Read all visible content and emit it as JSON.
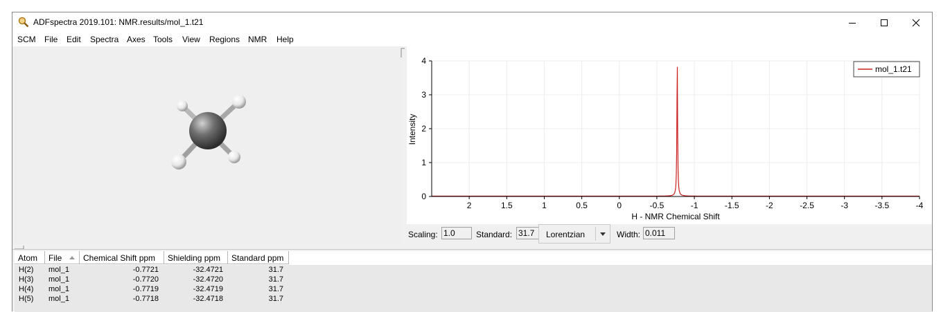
{
  "window": {
    "title": "ADFspectra 2019.101: NMR.results/mol_1.t21",
    "controls": [
      "minimize-icon",
      "maximize-icon",
      "close-icon"
    ]
  },
  "menu": [
    "SCM",
    "File",
    "Edit",
    "Spectra",
    "Axes",
    "Tools",
    "View",
    "Regions",
    "NMR",
    "Help"
  ],
  "molecule": {
    "atoms": [
      "C",
      "H",
      "H",
      "H",
      "H"
    ],
    "colors": {
      "carbon": "#6f6f6f",
      "hydrogen": "#f2f2f2"
    }
  },
  "chart_data": {
    "type": "line",
    "xlabel": "H - NMR Chemical Shift",
    "ylabel": "Intensity",
    "xlim": [
      2.5,
      -4.0
    ],
    "ylim": [
      0,
      4
    ],
    "x_ticks": [
      2,
      1.5,
      1,
      0.5,
      0,
      -0.5,
      -1,
      -1.5,
      -2,
      -2.5,
      -3,
      -3.5,
      -4
    ],
    "x_tick_labels": [
      "2",
      "1.5",
      "1",
      "0.5",
      "0",
      "-0.5",
      "-1",
      "-1.5",
      "-2",
      "-2.5",
      "-3",
      "-3.5",
      "-4"
    ],
    "y_ticks": [
      0,
      1,
      2,
      3,
      4
    ],
    "y_tick_labels": [
      "0",
      "1",
      "2",
      "3",
      "4"
    ],
    "grid": true,
    "legend_position": "top-right",
    "series": [
      {
        "name": "mol_1.t21",
        "color": "#cc1f1f",
        "peak_center": -0.772,
        "peak_height": 4.0,
        "lineshape": "Lorentzian"
      }
    ]
  },
  "controls": {
    "scaling_label": "Scaling:",
    "scaling_value": "1.0",
    "standard_label": "Standard:",
    "standard_value": "31.7",
    "lineshape": "Lorentzian",
    "width_label": "Width:",
    "width_value": "0.011"
  },
  "table": {
    "columns": [
      "Atom",
      "File",
      "Chemical Shift ppm",
      "Shielding ppm",
      "Standard ppm"
    ],
    "sort_column": "File",
    "rows": [
      [
        "H(2)",
        "mol_1",
        "-0.7721",
        "-32.4721",
        "31.7"
      ],
      [
        "H(3)",
        "mol_1",
        "-0.7720",
        "-32.4720",
        "31.7"
      ],
      [
        "H(4)",
        "mol_1",
        "-0.7719",
        "-32.4719",
        "31.7"
      ],
      [
        "H(5)",
        "mol_1",
        "-0.7718",
        "-32.4718",
        "31.7"
      ]
    ]
  }
}
